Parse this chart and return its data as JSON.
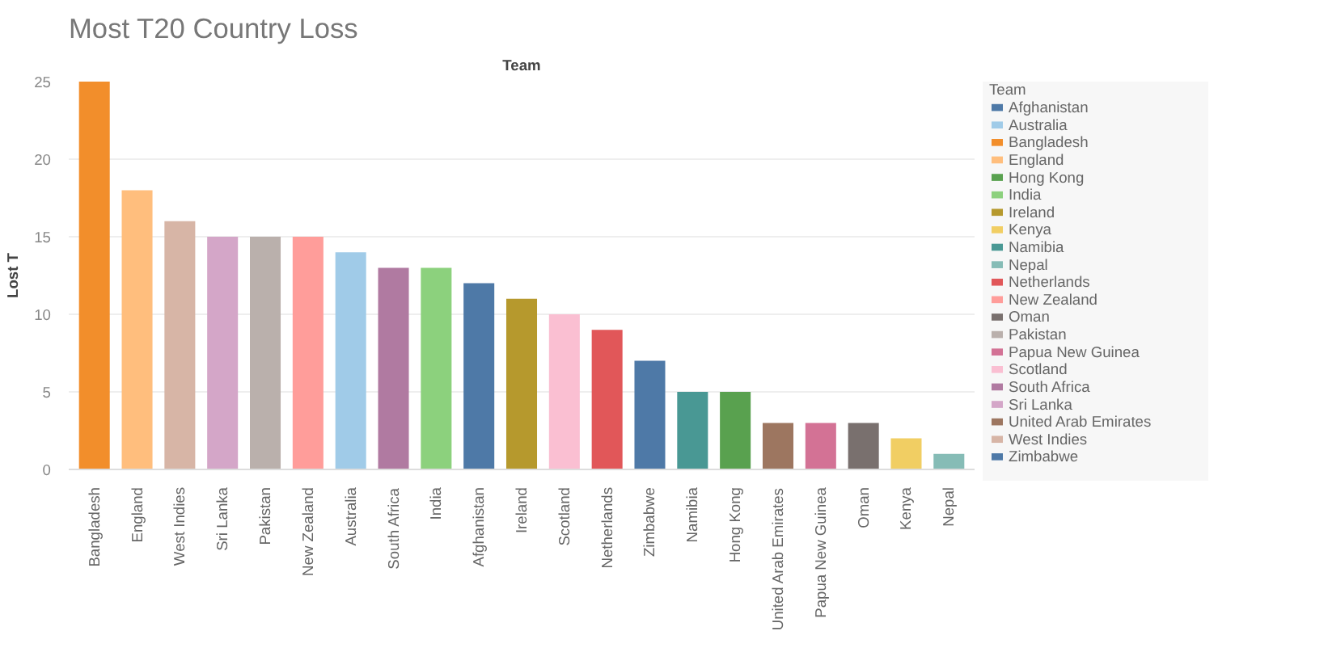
{
  "chart_data": {
    "type": "bar",
    "title": "Most T20 Country Loss",
    "xlabel": "Team",
    "ylabel": "Lost T",
    "legend_title": "Team",
    "legend": "right",
    "grid": "y",
    "ylim": [
      0,
      25
    ],
    "yticks": [
      0,
      5,
      10,
      15,
      20,
      25
    ],
    "categories": [
      "Bangladesh",
      "England",
      "West Indies",
      "Sri Lanka",
      "Pakistan",
      "New Zealand",
      "Australia",
      "South Africa",
      "India",
      "Afghanistan",
      "Ireland",
      "Scotland",
      "Netherlands",
      "Zimbabwe",
      "Namibia",
      "Hong Kong",
      "United Arab Emirates",
      "Papua New Guinea",
      "Oman",
      "Kenya",
      "Nepal"
    ],
    "series": [
      {
        "name": "Afghanistan",
        "color": "#4e79a7",
        "values": [
          null,
          null,
          null,
          null,
          null,
          null,
          null,
          null,
          null,
          12,
          null,
          null,
          null,
          null,
          null,
          null,
          null,
          null,
          null,
          null,
          null
        ]
      },
      {
        "name": "Australia",
        "color": "#a0cbe8",
        "values": [
          null,
          null,
          null,
          null,
          null,
          null,
          14,
          null,
          null,
          null,
          null,
          null,
          null,
          null,
          null,
          null,
          null,
          null,
          null,
          null,
          null
        ]
      },
      {
        "name": "Bangladesh",
        "color": "#f28e2b",
        "values": [
          25,
          null,
          null,
          null,
          null,
          null,
          null,
          null,
          null,
          null,
          null,
          null,
          null,
          null,
          null,
          null,
          null,
          null,
          null,
          null,
          null
        ]
      },
      {
        "name": "England",
        "color": "#ffbe7d",
        "values": [
          null,
          18,
          null,
          null,
          null,
          null,
          null,
          null,
          null,
          null,
          null,
          null,
          null,
          null,
          null,
          null,
          null,
          null,
          null,
          null,
          null
        ]
      },
      {
        "name": "Hong Kong",
        "color": "#59a14f",
        "values": [
          null,
          null,
          null,
          null,
          null,
          null,
          null,
          null,
          null,
          null,
          null,
          null,
          null,
          null,
          null,
          5,
          null,
          null,
          null,
          null,
          null
        ]
      },
      {
        "name": "India",
        "color": "#8cd17d",
        "values": [
          null,
          null,
          null,
          null,
          null,
          null,
          null,
          null,
          13,
          null,
          null,
          null,
          null,
          null,
          null,
          null,
          null,
          null,
          null,
          null,
          null
        ]
      },
      {
        "name": "Ireland",
        "color": "#b6992d",
        "values": [
          null,
          null,
          null,
          null,
          null,
          null,
          null,
          null,
          null,
          null,
          11,
          null,
          null,
          null,
          null,
          null,
          null,
          null,
          null,
          null,
          null
        ]
      },
      {
        "name": "Kenya",
        "color": "#f1ce63",
        "values": [
          null,
          null,
          null,
          null,
          null,
          null,
          null,
          null,
          null,
          null,
          null,
          null,
          null,
          null,
          null,
          null,
          null,
          null,
          null,
          2,
          null
        ]
      },
      {
        "name": "Namibia",
        "color": "#499894",
        "values": [
          null,
          null,
          null,
          null,
          null,
          null,
          null,
          null,
          null,
          null,
          null,
          null,
          null,
          null,
          5,
          null,
          null,
          null,
          null,
          null,
          null
        ]
      },
      {
        "name": "Nepal",
        "color": "#86bcb6",
        "values": [
          null,
          null,
          null,
          null,
          null,
          null,
          null,
          null,
          null,
          null,
          null,
          null,
          null,
          null,
          null,
          null,
          null,
          null,
          null,
          null,
          1
        ]
      },
      {
        "name": "Netherlands",
        "color": "#e15759",
        "values": [
          null,
          null,
          null,
          null,
          null,
          null,
          null,
          null,
          null,
          null,
          null,
          null,
          9,
          null,
          null,
          null,
          null,
          null,
          null,
          null,
          null
        ]
      },
      {
        "name": "New Zealand",
        "color": "#ff9d9a",
        "values": [
          null,
          null,
          null,
          null,
          null,
          15,
          null,
          null,
          null,
          null,
          null,
          null,
          null,
          null,
          null,
          null,
          null,
          null,
          null,
          null,
          null
        ]
      },
      {
        "name": "Oman",
        "color": "#79706e",
        "values": [
          null,
          null,
          null,
          null,
          null,
          null,
          null,
          null,
          null,
          null,
          null,
          null,
          null,
          null,
          null,
          null,
          null,
          null,
          3,
          null,
          null
        ]
      },
      {
        "name": "Pakistan",
        "color": "#bab0ac",
        "values": [
          null,
          null,
          null,
          null,
          15,
          null,
          null,
          null,
          null,
          null,
          null,
          null,
          null,
          null,
          null,
          null,
          null,
          null,
          null,
          null,
          null
        ]
      },
      {
        "name": "Papua New Guinea",
        "color": "#d37295",
        "values": [
          null,
          null,
          null,
          null,
          null,
          null,
          null,
          null,
          null,
          null,
          null,
          null,
          null,
          null,
          null,
          null,
          null,
          3,
          null,
          null,
          null
        ]
      },
      {
        "name": "Scotland",
        "color": "#fabfd2",
        "values": [
          null,
          null,
          null,
          null,
          null,
          null,
          null,
          null,
          null,
          null,
          null,
          10,
          null,
          null,
          null,
          null,
          null,
          null,
          null,
          null,
          null
        ]
      },
      {
        "name": "South Africa",
        "color": "#b07aa1",
        "values": [
          null,
          null,
          null,
          null,
          null,
          null,
          null,
          13,
          null,
          null,
          null,
          null,
          null,
          null,
          null,
          null,
          null,
          null,
          null,
          null,
          null
        ]
      },
      {
        "name": "Sri Lanka",
        "color": "#d4a6c8",
        "values": [
          null,
          null,
          null,
          15,
          null,
          null,
          null,
          null,
          null,
          null,
          null,
          null,
          null,
          null,
          null,
          null,
          null,
          null,
          null,
          null,
          null
        ]
      },
      {
        "name": "United Arab Emirates",
        "color": "#9d7660",
        "values": [
          null,
          null,
          null,
          null,
          null,
          null,
          null,
          null,
          null,
          null,
          null,
          null,
          null,
          null,
          null,
          null,
          3,
          null,
          null,
          null,
          null
        ]
      },
      {
        "name": "West Indies",
        "color": "#d7b5a6",
        "values": [
          null,
          null,
          16,
          null,
          null,
          null,
          null,
          null,
          null,
          null,
          null,
          null,
          null,
          null,
          null,
          null,
          null,
          null,
          null,
          null,
          null
        ]
      },
      {
        "name": "Zimbabwe",
        "color": "#4e79a7",
        "values": [
          null,
          null,
          null,
          null,
          null,
          null,
          null,
          null,
          null,
          null,
          null,
          null,
          null,
          7,
          null,
          null,
          null,
          null,
          null,
          null,
          null
        ]
      }
    ]
  }
}
